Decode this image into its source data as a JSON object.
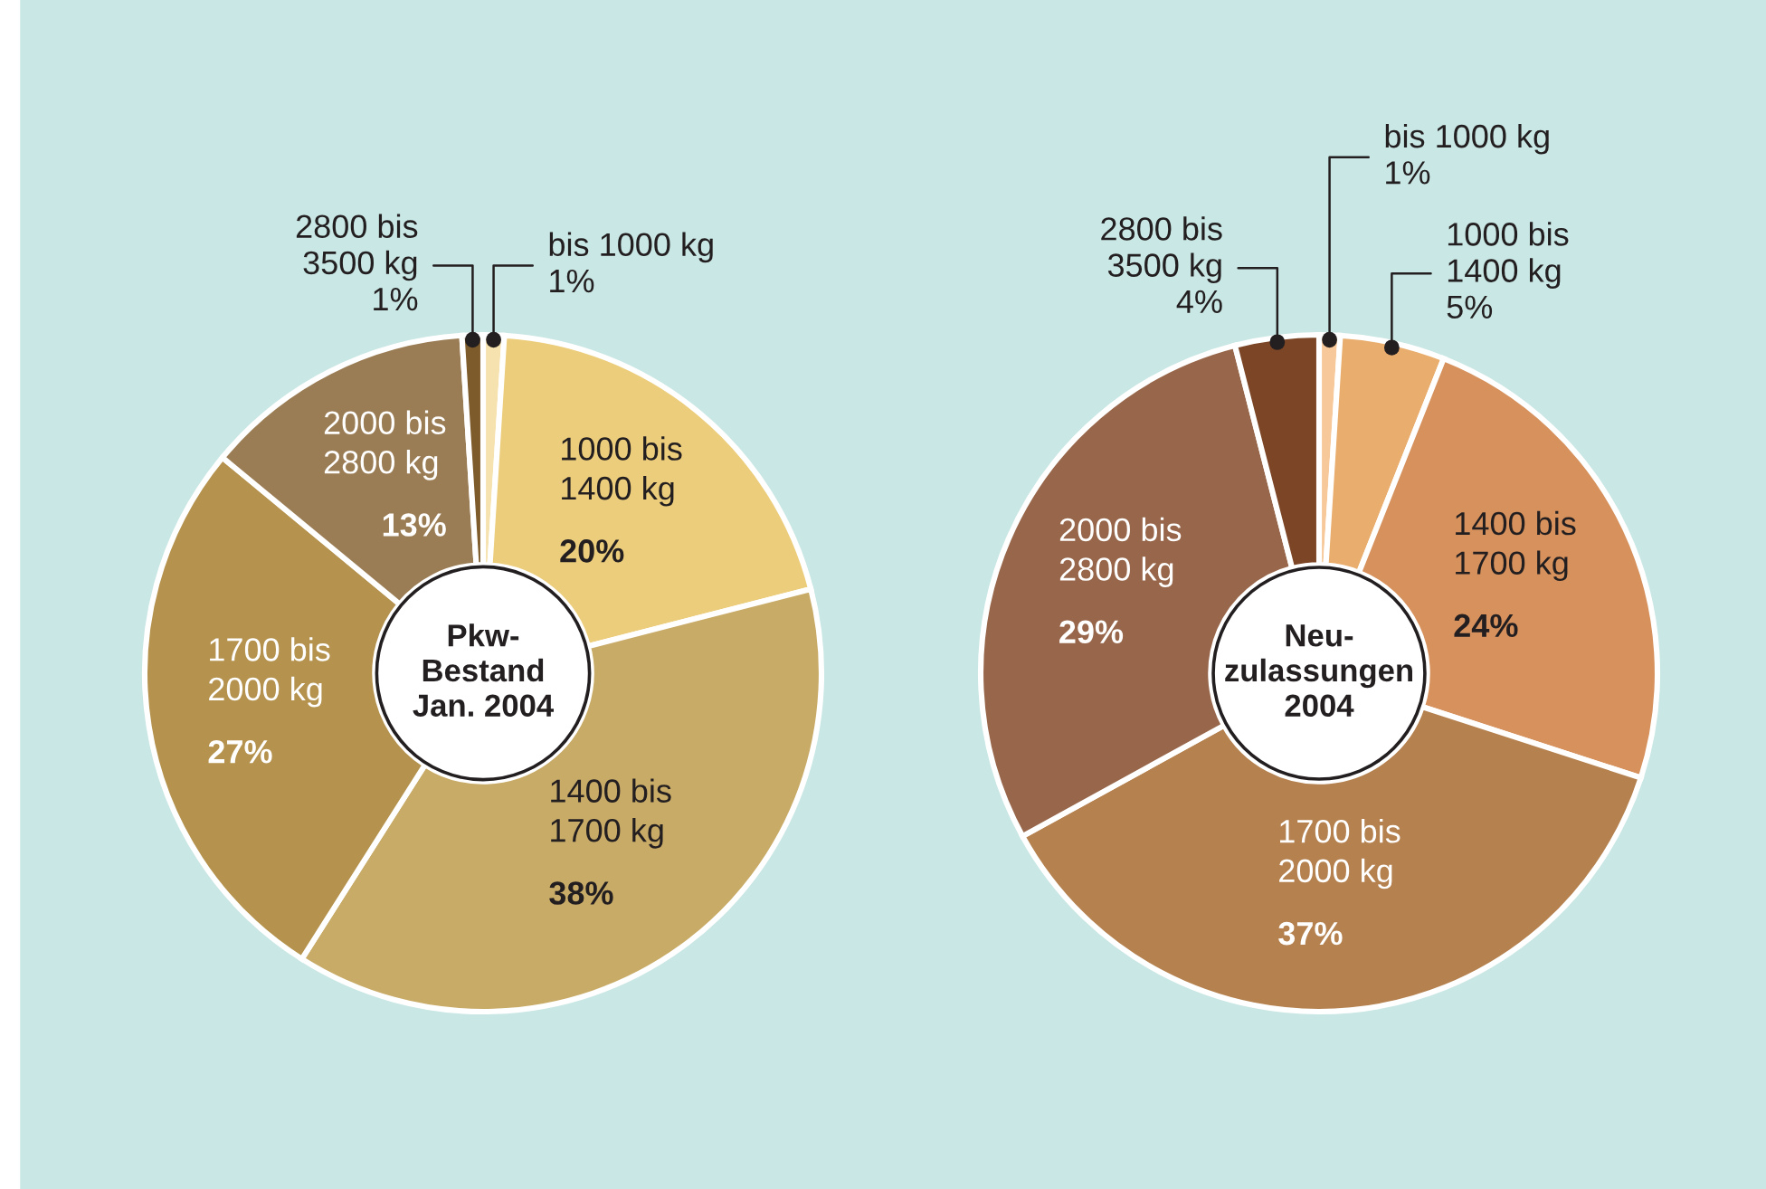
{
  "chart_data": [
    {
      "type": "donut",
      "title": "Pkw-\nBestand\nJan. 2004",
      "categories": [
        "bis 1000 kg",
        "1000 bis\n1400 kg",
        "1400 bis\n1700 kg",
        "1700 bis\n2000 kg",
        "2000 bis\n2800 kg",
        "2800 bis\n3500 kg"
      ],
      "values": [
        1,
        20,
        38,
        27,
        13,
        1
      ],
      "value_labels": [
        "1%",
        "20%",
        "38%",
        "27%",
        "13%",
        "1%"
      ],
      "colors": [
        "#f6e2ae",
        "#eccd7c",
        "#c9ab68",
        "#b5934f",
        "#9b7d55",
        "#7e5b2b"
      ]
    },
    {
      "type": "donut",
      "title": "Neu-\nzulassungen\n2004",
      "categories": [
        "bis 1000 kg",
        "1000 bis\n1400 kg",
        "1400 bis\n1700 kg",
        "1700 bis\n2000 kg",
        "2000 bis\n2800 kg",
        "2800 bis\n3500 kg"
      ],
      "values": [
        1,
        5,
        24,
        37,
        29,
        4
      ],
      "value_labels": [
        "1%",
        "5%",
        "24%",
        "37%",
        "29%",
        "4%"
      ],
      "colors": [
        "#f7c89a",
        "#e9ad6e",
        "#d6915d",
        "#b5814f",
        "#98674b",
        "#7c4626"
      ]
    }
  ]
}
